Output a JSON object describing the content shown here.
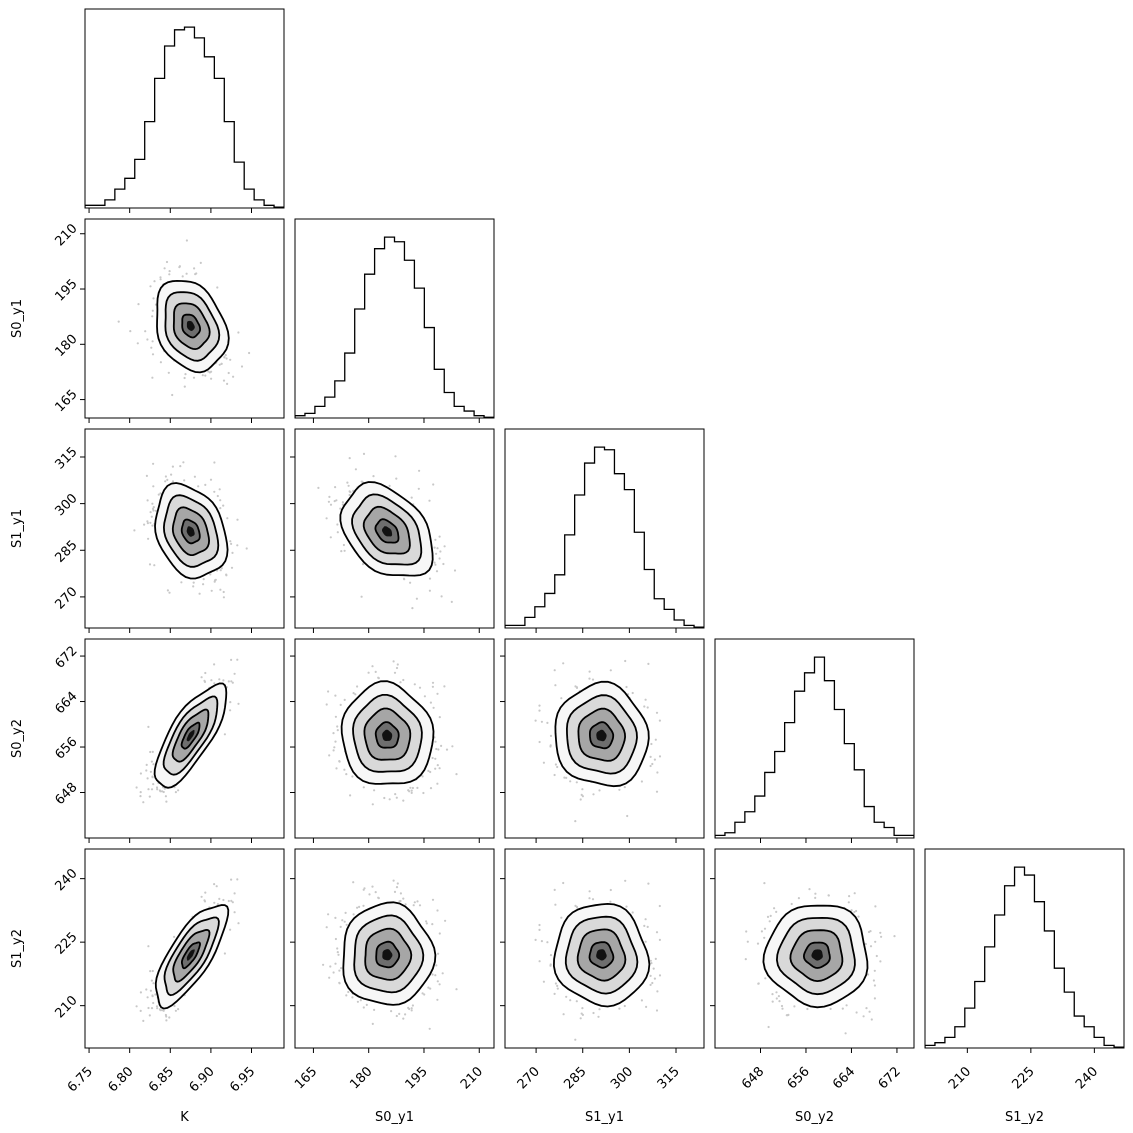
{
  "chart_data": {
    "type": "corner",
    "parameters": [
      {
        "name": "K",
        "xlim": [
          6.745,
          6.99
        ],
        "ticks": [
          6.75,
          6.8,
          6.85,
          6.9,
          6.95
        ],
        "tick_labels": [
          "6.75",
          "6.80",
          "6.85",
          "6.90",
          "6.95"
        ],
        "mean": 6.875,
        "sd": 0.022
      },
      {
        "name": "S0_y1",
        "xlim": [
          160,
          214
        ],
        "ticks": [
          165,
          180,
          195,
          210
        ],
        "tick_labels": [
          "165",
          "180",
          "195",
          "210"
        ],
        "mean": 185,
        "sd": 6.2
      },
      {
        "name": "S1_y1",
        "xlim": [
          260,
          324
        ],
        "ticks": [
          270,
          285,
          300,
          315
        ],
        "tick_labels": [
          "270",
          "285",
          "300",
          "315"
        ],
        "mean": 291,
        "sd": 7.5
      },
      {
        "name": "S0_y2",
        "xlim": [
          640,
          675
        ],
        "ticks": [
          648,
          656,
          664,
          672
        ],
        "tick_labels": [
          "648",
          "656",
          "664",
          "672"
        ],
        "mean": 658,
        "sd": 4.5
      },
      {
        "name": "S1_y2",
        "xlim": [
          200,
          247
        ],
        "ticks": [
          210,
          225,
          240
        ],
        "tick_labels": [
          "210",
          "225",
          "240"
        ],
        "mean": 222,
        "sd": 6.0
      }
    ],
    "histograms": [
      [
        1,
        1,
        3,
        7,
        11,
        18,
        32,
        48,
        60,
        66,
        67,
        63,
        56,
        48,
        32,
        17,
        7,
        3,
        1,
        0.3
      ],
      [
        1,
        2,
        5,
        9,
        16,
        28,
        47,
        62,
        73,
        78,
        76,
        68,
        56,
        39,
        21,
        11,
        5,
        3,
        1,
        0.3
      ],
      [
        1,
        1,
        4,
        8,
        13,
        20,
        35,
        50,
        62,
        68,
        67,
        58,
        52,
        36,
        22,
        11,
        7,
        3,
        1,
        0.3
      ],
      [
        1,
        2,
        6,
        10,
        16,
        25,
        33,
        44,
        56,
        63,
        69,
        60,
        49,
        36,
        26,
        12,
        6,
        4,
        1,
        1
      ],
      [
        1,
        2,
        4,
        8,
        15,
        25,
        38,
        50,
        61,
        68,
        65,
        55,
        44,
        30,
        21,
        12,
        8,
        4,
        1,
        0.3
      ]
    ],
    "correlations": [
      {
        "i": 1,
        "j": 0,
        "r": -0.25
      },
      {
        "i": 2,
        "j": 0,
        "r": -0.25
      },
      {
        "i": 2,
        "j": 1,
        "r": -0.35
      },
      {
        "i": 3,
        "j": 0,
        "r": 0.75
      },
      {
        "i": 3,
        "j": 1,
        "r": -0.05
      },
      {
        "i": 3,
        "j": 2,
        "r": -0.05
      },
      {
        "i": 4,
        "j": 0,
        "r": 0.75
      },
      {
        "i": 4,
        "j": 1,
        "r": 0.0
      },
      {
        "i": 4,
        "j": 2,
        "r": -0.05
      },
      {
        "i": 4,
        "j": 3,
        "r": 0.0
      }
    ],
    "contour_levels_sigma": [
      0.5,
      1.0,
      1.5,
      2.0
    ],
    "grid": false,
    "legend": "none"
  }
}
